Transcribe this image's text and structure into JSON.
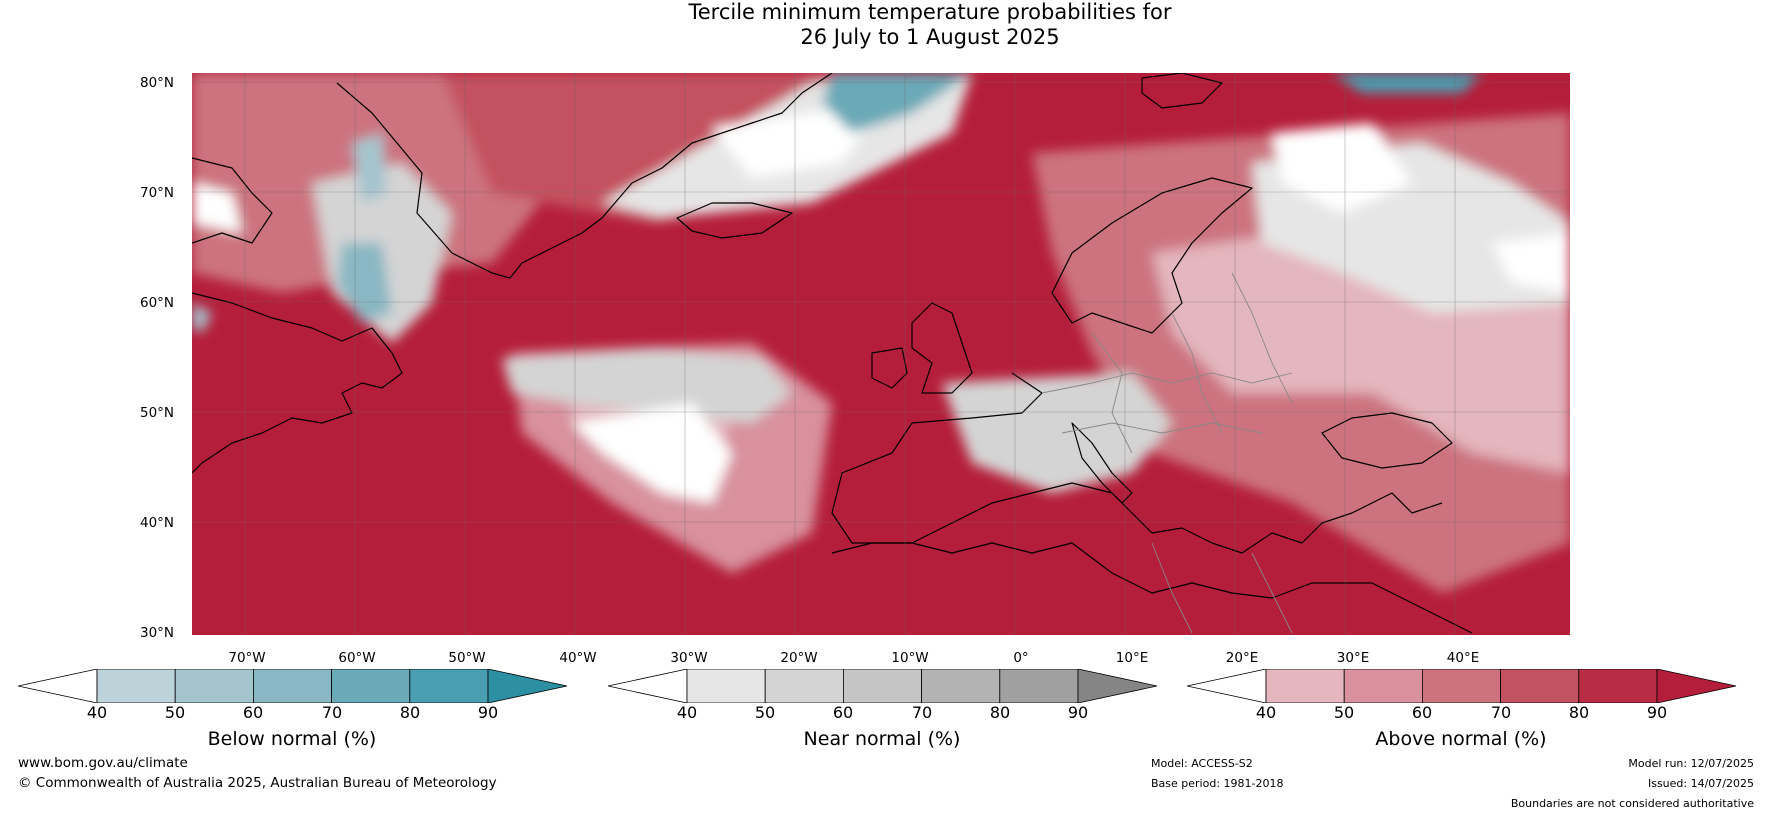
{
  "title": {
    "line1": "Tercile minimum temperature probabilities for",
    "line2": "26 July to 1 August 2025"
  },
  "map": {
    "lat_labels": [
      "80°N",
      "70°N",
      "60°N",
      "50°N",
      "40°N",
      "30°N"
    ],
    "lon_labels": [
      "70°W",
      "60°W",
      "50°W",
      "40°W",
      "30°W",
      "20°W",
      "10°W",
      "0°",
      "10°E",
      "20°E",
      "30°E",
      "40°E"
    ],
    "region": "North Atlantic and Europe",
    "colors": {
      "above_dominant": "#b51e3a",
      "land_border": "#000000",
      "country_border": "#888888",
      "gridline": "#666666"
    }
  },
  "colorbars": [
    {
      "label": "Below normal (%)",
      "ticks": [
        "40",
        "50",
        "60",
        "70",
        "80",
        "90"
      ],
      "colors": [
        "#ffffff",
        "#bcd3da",
        "#a4c5ce",
        "#89b7c3",
        "#6aa9b7",
        "#4a9eb1",
        "#2c8fa2"
      ]
    },
    {
      "label": "Near normal (%)",
      "ticks": [
        "40",
        "50",
        "60",
        "70",
        "80",
        "90"
      ],
      "colors": [
        "#ffffff",
        "#e6e6e6",
        "#d4d4d4",
        "#c5c5c5",
        "#b3b3b3",
        "#a0a0a0",
        "#858585"
      ]
    },
    {
      "label": "Above normal (%)",
      "ticks": [
        "40",
        "50",
        "60",
        "70",
        "80",
        "90"
      ],
      "colors": [
        "#ffffff",
        "#e4b6be",
        "#d8919d",
        "#cc737f",
        "#c4515f",
        "#b82c44",
        "#b51e3a"
      ]
    }
  ],
  "footer": {
    "website": "www.bom.gov.au/climate",
    "copyright": "© Commonwealth of Australia 2025, Australian Bureau of Meteorology",
    "model": "Model: ACCESS-S2",
    "base_period": "Base period: 1981-2018",
    "model_run": "Model run: 12/07/2025",
    "issued": "Issued: 14/07/2025",
    "disclaimer": "Boundaries are not considered authoritative"
  }
}
